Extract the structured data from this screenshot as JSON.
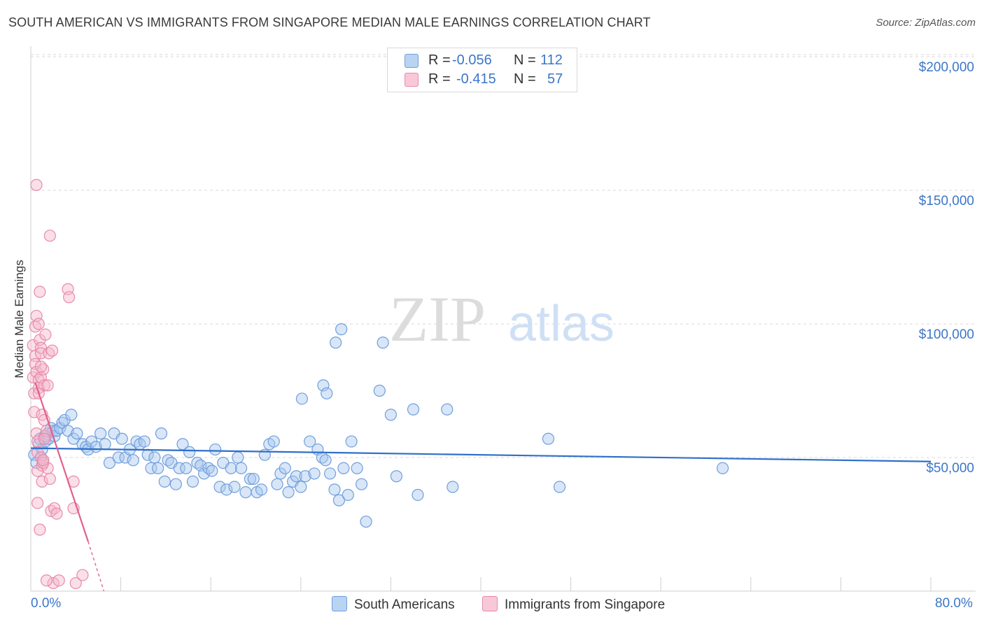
{
  "title": "SOUTH AMERICAN VS IMMIGRANTS FROM SINGAPORE MEDIAN MALE EARNINGS CORRELATION CHART",
  "source": "Source: ZipAtlas.com",
  "watermark": {
    "zip": "ZIP",
    "atlas": "atlas"
  },
  "legend": {
    "rows": [
      {
        "r_label": "R =",
        "r_value": "-0.056",
        "n_label": "N =",
        "n_value": "112"
      },
      {
        "r_label": "R =",
        "r_value": "-0.415",
        "n_label": "N =",
        "n_value": "57"
      }
    ]
  },
  "colors": {
    "blue_fill": "#a8c8f0",
    "blue_stroke": "#6f9fdc",
    "blue_line": "#2f6fc9",
    "pink_fill": "#f5b8cc",
    "pink_stroke": "#e88aaa",
    "pink_line": "#e0608e",
    "axis_text": "#3b76c8",
    "grid": "#d8d8d8"
  },
  "chart_data": {
    "type": "scatter",
    "title": "SOUTH AMERICAN VS IMMIGRANTS FROM SINGAPORE MEDIAN MALE EARNINGS CORRELATION CHART",
    "xlabel": "",
    "ylabel": "Median Male Earnings",
    "xlim": [
      0,
      80
    ],
    "ylim": [
      0,
      205000
    ],
    "x_tick_labels": [
      "0.0%",
      "80.0%"
    ],
    "y_ticks": [
      {
        "value": 50000,
        "label": "$50,000"
      },
      {
        "value": 100000,
        "label": "$100,000"
      },
      {
        "value": 150000,
        "label": "$150,000"
      },
      {
        "value": 200000,
        "label": "$200,000"
      }
    ],
    "series": [
      {
        "name": "South Americans",
        "r": -0.056,
        "n": 112,
        "trend": {
          "x": [
            0,
            80
          ],
          "y": [
            53500,
            48500
          ]
        },
        "points": [
          [
            0.3,
            51000
          ],
          [
            0.5,
            48000
          ],
          [
            0.7,
            55000
          ],
          [
            0.8,
            57000
          ],
          [
            0.9,
            50000
          ],
          [
            1.0,
            53000
          ],
          [
            1.1,
            49000
          ],
          [
            1.2,
            58000
          ],
          [
            1.3,
            56000
          ],
          [
            1.5,
            59000
          ],
          [
            1.6,
            57000
          ],
          [
            1.8,
            61000
          ],
          [
            2.0,
            60000
          ],
          [
            2.1,
            58000
          ],
          [
            2.3,
            60000
          ],
          [
            2.6,
            61000
          ],
          [
            2.8,
            63000
          ],
          [
            3.0,
            64000
          ],
          [
            3.3,
            60000
          ],
          [
            3.6,
            66000
          ],
          [
            3.8,
            57000
          ],
          [
            4.1,
            59000
          ],
          [
            4.6,
            55000
          ],
          [
            4.9,
            54000
          ],
          [
            5.1,
            53000
          ],
          [
            5.4,
            56000
          ],
          [
            5.8,
            54000
          ],
          [
            6.2,
            59000
          ],
          [
            6.6,
            55000
          ],
          [
            7.0,
            48000
          ],
          [
            7.4,
            59000
          ],
          [
            7.8,
            50000
          ],
          [
            8.1,
            57000
          ],
          [
            8.4,
            50000
          ],
          [
            8.8,
            53000
          ],
          [
            9.1,
            49000
          ],
          [
            9.4,
            56000
          ],
          [
            9.7,
            55000
          ],
          [
            10.1,
            56000
          ],
          [
            10.4,
            51000
          ],
          [
            10.7,
            46000
          ],
          [
            11.0,
            50000
          ],
          [
            11.3,
            46000
          ],
          [
            11.6,
            59000
          ],
          [
            11.9,
            41000
          ],
          [
            12.2,
            49000
          ],
          [
            12.5,
            48000
          ],
          [
            12.9,
            40000
          ],
          [
            13.2,
            46000
          ],
          [
            13.5,
            55000
          ],
          [
            13.8,
            46000
          ],
          [
            14.1,
            52000
          ],
          [
            14.4,
            41000
          ],
          [
            14.8,
            48000
          ],
          [
            15.1,
            47000
          ],
          [
            15.4,
            44000
          ],
          [
            15.8,
            46000
          ],
          [
            16.1,
            45000
          ],
          [
            16.4,
            53000
          ],
          [
            16.8,
            39000
          ],
          [
            17.1,
            48000
          ],
          [
            17.4,
            38000
          ],
          [
            17.8,
            46000
          ],
          [
            18.1,
            39000
          ],
          [
            18.4,
            50000
          ],
          [
            18.7,
            46000
          ],
          [
            19.1,
            37000
          ],
          [
            19.5,
            42000
          ],
          [
            19.8,
            42000
          ],
          [
            20.1,
            37000
          ],
          [
            20.5,
            38000
          ],
          [
            20.8,
            51000
          ],
          [
            21.2,
            55000
          ],
          [
            21.6,
            56000
          ],
          [
            21.9,
            40000
          ],
          [
            22.2,
            44000
          ],
          [
            22.6,
            46000
          ],
          [
            22.9,
            37000
          ],
          [
            23.3,
            41000
          ],
          [
            23.6,
            43000
          ],
          [
            24.0,
            39000
          ],
          [
            24.4,
            43000
          ],
          [
            24.8,
            56000
          ],
          [
            25.2,
            44000
          ],
          [
            25.5,
            53000
          ],
          [
            25.9,
            50000
          ],
          [
            26.2,
            49000
          ],
          [
            26.6,
            44000
          ],
          [
            27.0,
            38000
          ],
          [
            27.4,
            34000
          ],
          [
            27.8,
            46000
          ],
          [
            28.2,
            36000
          ],
          [
            28.5,
            56000
          ],
          [
            29.0,
            46000
          ],
          [
            29.4,
            40000
          ],
          [
            29.8,
            26000
          ],
          [
            24.1,
            72000
          ],
          [
            26.0,
            77000
          ],
          [
            26.3,
            74000
          ],
          [
            27.1,
            93000
          ],
          [
            27.6,
            98000
          ],
          [
            31.3,
            93000
          ],
          [
            31.0,
            75000
          ],
          [
            32.0,
            66000
          ],
          [
            32.5,
            43000
          ],
          [
            34.0,
            68000
          ],
          [
            34.4,
            36000
          ],
          [
            37.0,
            68000
          ],
          [
            37.5,
            39000
          ],
          [
            46.0,
            57000
          ],
          [
            47.0,
            39000
          ],
          [
            61.5,
            46000
          ]
        ]
      },
      {
        "name": "Immigrants from Singapore",
        "r": -0.415,
        "n": 57,
        "trend": {
          "x": [
            0.4,
            5.1
          ],
          "y": [
            78000,
            18500
          ]
        },
        "trend_extension": {
          "x": [
            5.1,
            6.5
          ],
          "y": [
            18500,
            0
          ]
        },
        "points": [
          [
            0.2,
            92000
          ],
          [
            0.2,
            80000
          ],
          [
            0.3,
            74000
          ],
          [
            0.3,
            67000
          ],
          [
            0.4,
            88000
          ],
          [
            0.4,
            85000
          ],
          [
            0.4,
            99000
          ],
          [
            0.5,
            103000
          ],
          [
            0.5,
            82000
          ],
          [
            0.5,
            59000
          ],
          [
            0.6,
            56000
          ],
          [
            0.6,
            52000
          ],
          [
            0.6,
            45000
          ],
          [
            0.7,
            100000
          ],
          [
            0.7,
            79000
          ],
          [
            0.7,
            76000
          ],
          [
            0.8,
            112000
          ],
          [
            0.8,
            94000
          ],
          [
            0.9,
            91000
          ],
          [
            0.9,
            89000
          ],
          [
            0.9,
            80000
          ],
          [
            0.9,
            50000
          ],
          [
            1.0,
            66000
          ],
          [
            1.0,
            47000
          ],
          [
            1.0,
            41000
          ],
          [
            1.1,
            83000
          ],
          [
            1.2,
            77000
          ],
          [
            1.3,
            96000
          ],
          [
            1.3,
            58000
          ],
          [
            1.4,
            60000
          ],
          [
            1.5,
            46000
          ],
          [
            1.6,
            89000
          ],
          [
            1.7,
            133000
          ],
          [
            1.7,
            42000
          ],
          [
            1.8,
            30000
          ],
          [
            1.9,
            90000
          ],
          [
            2.0,
            3000
          ],
          [
            0.5,
            152000
          ],
          [
            0.6,
            33000
          ],
          [
            0.8,
            23000
          ],
          [
            1.1,
            48000
          ],
          [
            1.2,
            64000
          ],
          [
            1.4,
            4000
          ],
          [
            1.5,
            77000
          ],
          [
            2.1,
            31000
          ],
          [
            2.3,
            29000
          ],
          [
            2.5,
            4000
          ],
          [
            3.3,
            113000
          ],
          [
            3.4,
            110000
          ],
          [
            3.8,
            41000
          ],
          [
            3.8,
            31000
          ],
          [
            4.0,
            3000
          ],
          [
            4.6,
            6000
          ],
          [
            1.1,
            49000
          ],
          [
            0.7,
            74000
          ],
          [
            0.9,
            84000
          ],
          [
            1.2,
            57000
          ]
        ]
      }
    ]
  }
}
